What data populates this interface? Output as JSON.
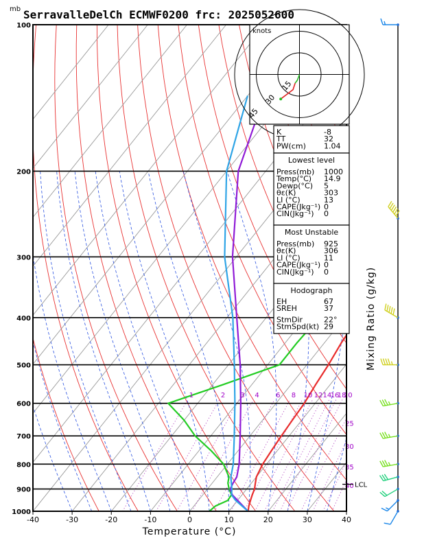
{
  "header": {
    "units_label": "mb",
    "title": "SerravalleDelCh ECMWF0200 frc: 2025052600"
  },
  "axes": {
    "xlabel": "Temperature (°C)",
    "x_ticks": [
      -40,
      -30,
      -20,
      -10,
      0,
      10,
      20,
      30,
      40
    ],
    "y_ticks": [
      100,
      200,
      300,
      400,
      500,
      600,
      700,
      800,
      900,
      1000
    ],
    "right_label": "Mixing Ratio (g/kg)",
    "mixing_ratio_labels": [
      "1",
      "2",
      "3",
      "4",
      "6",
      "8",
      "10",
      "12",
      "14",
      "16",
      "18",
      "20",
      "25",
      "30",
      "35",
      "40"
    ]
  },
  "hodograph": {
    "units": "knots",
    "ring_labels": [
      "15",
      "30",
      "45"
    ]
  },
  "indices": {
    "general": [
      {
        "label": "K",
        "value": "-8"
      },
      {
        "label": "TT",
        "value": "32"
      },
      {
        "label": "PW(cm)",
        "value": "1.04"
      }
    ],
    "lowest_level": {
      "heading": "Lowest level",
      "rows": [
        {
          "label": "Press(mb)",
          "value": "1000"
        },
        {
          "label": "Temp(°C)",
          "value": "14.9"
        },
        {
          "label": "Dewp(°C)",
          "value": "5"
        },
        {
          "label": "θε(K)",
          "value": "303"
        },
        {
          "label": "LI (°C)",
          "value": "13"
        },
        {
          "label": "CAPE(Jkg⁻¹)",
          "value": "0"
        },
        {
          "label": "CIN(Jkg⁻¹)",
          "value": "0"
        }
      ]
    },
    "most_unstable": {
      "heading": "Most Unstable",
      "rows": [
        {
          "label": "Press(mb)",
          "value": "925"
        },
        {
          "label": "θε(K)",
          "value": "306"
        },
        {
          "label": "LI (°C)",
          "value": "11"
        },
        {
          "label": "CAPE(Jkg⁻¹)",
          "value": "0"
        },
        {
          "label": "CIN(Jkg⁻¹)",
          "value": "0"
        }
      ]
    },
    "hodograph_box": {
      "heading": "Hodograph",
      "rows": [
        {
          "label": "EH",
          "value": "67"
        },
        {
          "label": "SREH",
          "value": "37"
        },
        {
          "label": "StmDir",
          "value": "22°"
        },
        {
          "label": "StmSpd(kt)",
          "value": "29"
        }
      ]
    }
  },
  "level_markers": [
    "LCL"
  ],
  "chart_data": {
    "type": "line",
    "title": "SerravalleDelCh ECMWF0200 frc: 2025052600",
    "xlabel": "Temperature (°C)",
    "ylabel": "mb",
    "xlim": [
      -40,
      40
    ],
    "ylim": [
      1000,
      100
    ],
    "y_scale": "log",
    "grid": true,
    "series": [
      {
        "color": "#e82c2c",
        "points": [
          [
            1000,
            14.9
          ],
          [
            975,
            14.0
          ],
          [
            950,
            13.3
          ],
          [
            925,
            12.6
          ],
          [
            900,
            12.0
          ],
          [
            875,
            11.0
          ],
          [
            850,
            10.0
          ],
          [
            825,
            9.5
          ],
          [
            800,
            9.0
          ],
          [
            750,
            8.5
          ],
          [
            700,
            8.0
          ],
          [
            650,
            7.6
          ],
          [
            600,
            7.2
          ],
          [
            550,
            6.3
          ],
          [
            500,
            5.5
          ],
          [
            450,
            4.3
          ],
          [
            400,
            3.5
          ],
          [
            350,
            -1
          ],
          [
            300,
            -6
          ],
          [
            250,
            -12
          ],
          [
            200,
            -7
          ],
          [
            150,
            1
          ],
          [
            100,
            10
          ]
        ]
      },
      {
        "color": "#22cc22",
        "points": [
          [
            1000,
            5.0
          ],
          [
            975,
            5.5
          ],
          [
            950,
            7.5
          ],
          [
            925,
            7.3
          ],
          [
            900,
            5.5
          ],
          [
            875,
            4.0
          ],
          [
            850,
            3.0
          ],
          [
            800,
            -1.0
          ],
          [
            750,
            -7.0
          ],
          [
            700,
            -14.0
          ],
          [
            650,
            -20.0
          ],
          [
            600,
            -27.5
          ],
          [
            550,
            -17.5
          ],
          [
            500,
            -7.0
          ],
          [
            450,
            -7.0
          ],
          [
            400,
            -6.5
          ],
          [
            350,
            -7.5
          ],
          [
            300,
            -11
          ],
          [
            250,
            -17
          ],
          [
            200,
            -22
          ],
          [
            150,
            -27
          ],
          [
            100,
            -32
          ]
        ]
      },
      {
        "color": "#8f1ad6",
        "points": [
          [
            1000,
            14.9
          ],
          [
            950,
            10.0
          ],
          [
            925,
            7.5
          ],
          [
            900,
            5.8
          ],
          [
            875,
            5.3
          ],
          [
            850,
            5.0
          ],
          [
            800,
            3.0
          ],
          [
            700,
            -2.5
          ],
          [
            600,
            -9.0
          ],
          [
            500,
            -17.0
          ],
          [
            400,
            -27.5
          ],
          [
            300,
            -41
          ],
          [
            200,
            -57
          ],
          [
            150,
            -64
          ],
          [
            120,
            -70
          ]
        ]
      },
      {
        "color": "#2ea4e6",
        "points": [
          [
            1000,
            14.9
          ],
          [
            950,
            9.5
          ],
          [
            925,
            7.3
          ],
          [
            900,
            6.2
          ],
          [
            850,
            3.5
          ],
          [
            800,
            1.5
          ],
          [
            700,
            -4.0
          ],
          [
            600,
            -10.5
          ],
          [
            500,
            -18.5
          ],
          [
            400,
            -28.5
          ],
          [
            300,
            -43
          ],
          [
            200,
            -60
          ],
          [
            140,
            -70
          ]
        ]
      }
    ],
    "wind_barbs": [
      {
        "pressure": 1000,
        "dir": 210,
        "speed": 10
      },
      {
        "pressure": 950,
        "dir": 225,
        "speed": 15
      },
      {
        "pressure": 900,
        "dir": 240,
        "speed": 20
      },
      {
        "pressure": 850,
        "dir": 255,
        "speed": 30
      },
      {
        "pressure": 800,
        "dir": 260,
        "speed": 35
      },
      {
        "pressure": 700,
        "dir": 260,
        "speed": 35
      },
      {
        "pressure": 600,
        "dir": 260,
        "speed": 35
      },
      {
        "pressure": 500,
        "dir": 270,
        "speed": 45
      },
      {
        "pressure": 400,
        "dir": 300,
        "speed": 50
      },
      {
        "pressure": 250,
        "dir": 320,
        "speed": 60
      },
      {
        "pressure": 100,
        "dir": 270,
        "speed": 15
      }
    ],
    "hodograph_path": [
      [
        0,
        0
      ],
      [
        -1.5,
        4
      ],
      [
        -3.0,
        6
      ],
      [
        -4.5,
        10.5
      ],
      [
        -9,
        14
      ],
      [
        -13,
        17
      ]
    ]
  }
}
